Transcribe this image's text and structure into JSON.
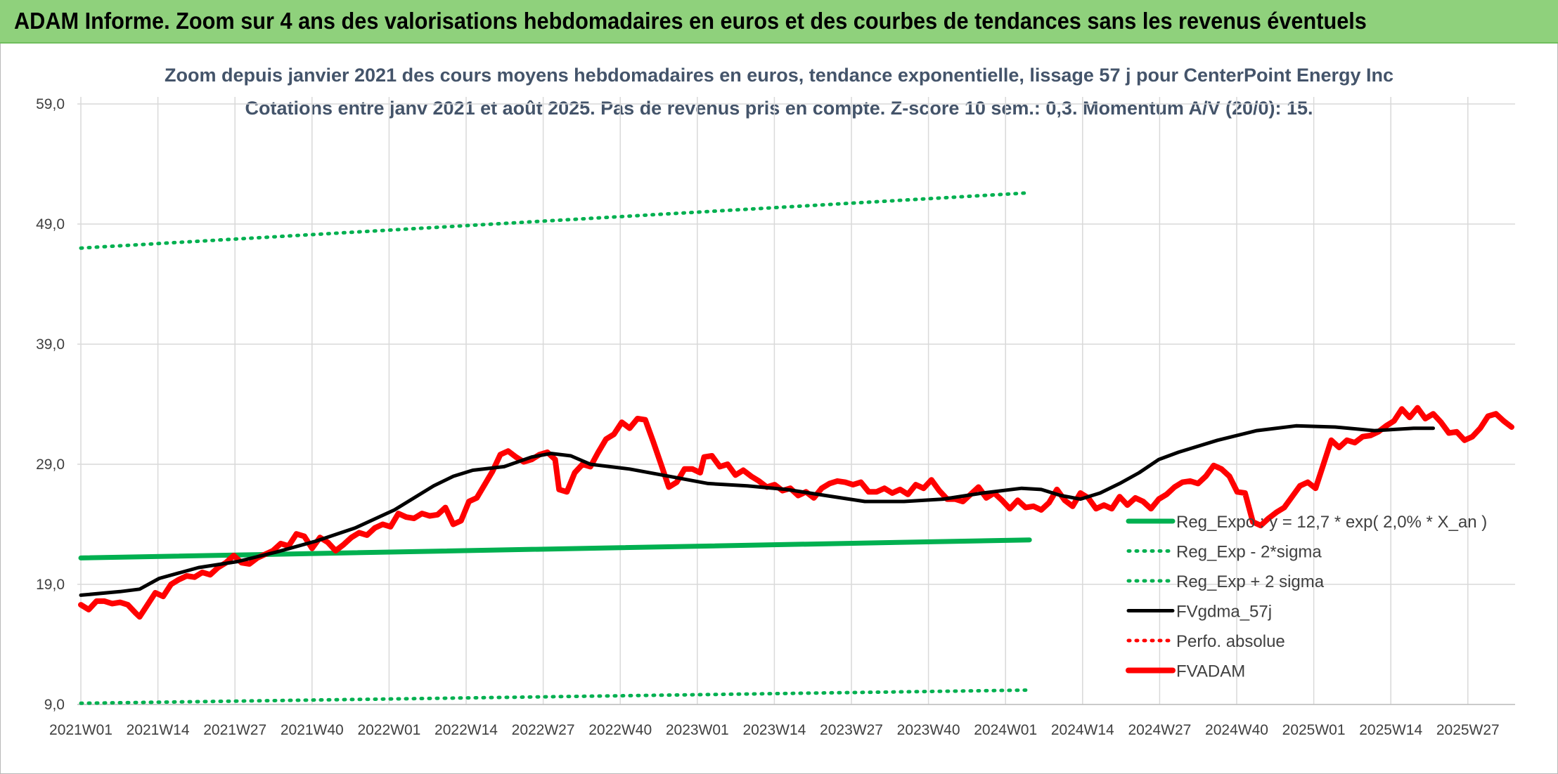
{
  "header": {
    "banner_title": "ADAM Informe. Zoom sur 4 ans des valorisations hebdomadaires en euros et des courbes de tendances sans les revenus éventuels",
    "banner_color": "#8fd17c"
  },
  "chart_data": {
    "type": "line",
    "title": "Zoom depuis janvier 2021 des cours moyens hebdomadaires en euros, tendance exponentielle, lissage 57 j pour CenterPoint Energy Inc",
    "subtitle": "Cotations entre janv 2021 et août 2025. Pas de revenus pris en compte. Z-score 10 sem.: 0,3. Momentum A/V (20/0): 15.",
    "xlabel": "",
    "ylabel": "",
    "ylim": [
      9,
      59
    ],
    "yticks": [
      "59,0",
      "49,0",
      "39,0",
      "29,0",
      "19,0",
      "9,0"
    ],
    "ytick_values": [
      59,
      49,
      39,
      29,
      19,
      9
    ],
    "xticks": [
      "2021W01",
      "2021W14",
      "2021W27",
      "2021W40",
      "2022W01",
      "2022W14",
      "2022W27",
      "2022W40",
      "2023W01",
      "2023W14",
      "2023W27",
      "2023W40",
      "2024W01",
      "2024W14",
      "2024W27",
      "2024W40",
      "2025W01",
      "2025W14",
      "2025W27"
    ],
    "week_count": 243,
    "grid": true,
    "legend_position": "right",
    "series": [
      {
        "name": "Reg_Expo : y = 12,7 * exp( 2,0% *  X_an )",
        "color": "#00b050",
        "style": "solid-thick",
        "points": [
          [
            0,
            21.2
          ],
          [
            242,
            22.7
          ]
        ]
      },
      {
        "name": "Reg_Exp - 2*sigma",
        "color": "#00b050",
        "style": "dotted",
        "points": [
          [
            0,
            9.1
          ],
          [
            242,
            10.2
          ]
        ]
      },
      {
        "name": "Reg_Exp + 2 sigma",
        "color": "#00b050",
        "style": "dotted",
        "points": [
          [
            0,
            47.0
          ],
          [
            242,
            51.6
          ]
        ]
      },
      {
        "name": "FVgdma_57j",
        "color": "#000000",
        "style": "solid",
        "points": [
          [
            0,
            18.1
          ],
          [
            10,
            18.4
          ],
          [
            15,
            18.6
          ],
          [
            20,
            19.5
          ],
          [
            30,
            20.4
          ],
          [
            40,
            20.9
          ],
          [
            50,
            21.7
          ],
          [
            60,
            22.6
          ],
          [
            70,
            23.7
          ],
          [
            80,
            25.2
          ],
          [
            85,
            26.2
          ],
          [
            90,
            27.2
          ],
          [
            95,
            28.0
          ],
          [
            100,
            28.5
          ],
          [
            108,
            28.8
          ],
          [
            115,
            29.6
          ],
          [
            120,
            29.9
          ],
          [
            125,
            29.7
          ],
          [
            130,
            29.0
          ],
          [
            140,
            28.6
          ],
          [
            150,
            28.0
          ],
          [
            160,
            27.4
          ],
          [
            170,
            27.2
          ],
          [
            180,
            26.9
          ],
          [
            190,
            26.4
          ],
          [
            200,
            25.9
          ],
          [
            210,
            25.9
          ],
          [
            220,
            26.1
          ],
          [
            230,
            26.6
          ],
          [
            240,
            27.0
          ],
          [
            245,
            26.9
          ],
          [
            250,
            26.4
          ],
          [
            255,
            26.1
          ],
          [
            260,
            26.6
          ],
          [
            265,
            27.4
          ],
          [
            270,
            28.3
          ],
          [
            275,
            29.4
          ],
          [
            280,
            30.0
          ],
          [
            290,
            31.0
          ],
          [
            300,
            31.8
          ],
          [
            310,
            32.2
          ],
          [
            320,
            32.1
          ],
          [
            330,
            31.8
          ],
          [
            340,
            32.0
          ],
          [
            345,
            32.0
          ]
        ]
      },
      {
        "name": "Perfo. absolue",
        "color": "#ff0000",
        "style": "dotted",
        "points": []
      },
      {
        "name": "FVADAM",
        "color": "#ff0000",
        "style": "solid-thick",
        "points": [
          [
            0,
            17.3
          ],
          [
            2,
            16.9
          ],
          [
            4,
            17.6
          ],
          [
            6,
            17.6
          ],
          [
            8,
            17.4
          ],
          [
            10,
            17.5
          ],
          [
            12,
            17.3
          ],
          [
            14,
            16.6
          ],
          [
            15,
            16.3
          ],
          [
            17,
            17.3
          ],
          [
            19,
            18.3
          ],
          [
            21,
            18.0
          ],
          [
            23,
            19.0
          ],
          [
            25,
            19.4
          ],
          [
            27,
            19.7
          ],
          [
            29,
            19.6
          ],
          [
            31,
            20.0
          ],
          [
            33,
            19.8
          ],
          [
            35,
            20.4
          ],
          [
            37,
            20.8
          ],
          [
            39,
            21.4
          ],
          [
            41,
            20.8
          ],
          [
            43,
            20.7
          ],
          [
            45,
            21.2
          ],
          [
            47,
            21.5
          ],
          [
            49,
            21.8
          ],
          [
            51,
            22.4
          ],
          [
            53,
            22.2
          ],
          [
            55,
            23.2
          ],
          [
            57,
            23.0
          ],
          [
            59,
            22.0
          ],
          [
            61,
            22.9
          ],
          [
            63,
            22.5
          ],
          [
            65,
            21.8
          ],
          [
            67,
            22.3
          ],
          [
            69,
            22.9
          ],
          [
            71,
            23.3
          ],
          [
            73,
            23.1
          ],
          [
            75,
            23.7
          ],
          [
            77,
            24.0
          ],
          [
            79,
            23.8
          ],
          [
            81,
            24.9
          ],
          [
            83,
            24.6
          ],
          [
            85,
            24.5
          ],
          [
            87,
            24.9
          ],
          [
            89,
            24.7
          ],
          [
            91,
            24.8
          ],
          [
            93,
            25.4
          ],
          [
            95,
            24.0
          ],
          [
            97,
            24.3
          ],
          [
            99,
            25.9
          ],
          [
            101,
            26.2
          ],
          [
            103,
            27.3
          ],
          [
            105,
            28.4
          ],
          [
            107,
            29.8
          ],
          [
            109,
            30.1
          ],
          [
            111,
            29.6
          ],
          [
            113,
            29.2
          ],
          [
            115,
            29.4
          ],
          [
            117,
            29.8
          ],
          [
            119,
            30.0
          ],
          [
            121,
            29.4
          ],
          [
            122,
            26.9
          ],
          [
            124,
            26.7
          ],
          [
            126,
            28.3
          ],
          [
            128,
            29.0
          ],
          [
            130,
            28.8
          ],
          [
            132,
            30.0
          ],
          [
            134,
            31.1
          ],
          [
            136,
            31.5
          ],
          [
            138,
            32.5
          ],
          [
            140,
            32.0
          ],
          [
            142,
            32.8
          ],
          [
            144,
            32.7
          ],
          [
            146,
            30.9
          ],
          [
            148,
            29.0
          ],
          [
            150,
            27.1
          ],
          [
            152,
            27.5
          ],
          [
            154,
            28.6
          ],
          [
            156,
            28.6
          ],
          [
            158,
            28.3
          ],
          [
            159,
            29.6
          ],
          [
            161,
            29.7
          ],
          [
            163,
            28.8
          ],
          [
            165,
            29.0
          ],
          [
            167,
            28.1
          ],
          [
            169,
            28.5
          ],
          [
            171,
            28.0
          ],
          [
            173,
            27.6
          ],
          [
            175,
            27.1
          ],
          [
            177,
            27.3
          ],
          [
            179,
            26.8
          ],
          [
            181,
            27.0
          ],
          [
            183,
            26.4
          ],
          [
            185,
            26.7
          ],
          [
            187,
            26.2
          ],
          [
            189,
            27.0
          ],
          [
            191,
            27.4
          ],
          [
            193,
            27.6
          ],
          [
            195,
            27.5
          ],
          [
            197,
            27.3
          ],
          [
            199,
            27.5
          ],
          [
            201,
            26.7
          ],
          [
            203,
            26.7
          ],
          [
            205,
            27.0
          ],
          [
            207,
            26.6
          ],
          [
            209,
            26.9
          ],
          [
            211,
            26.5
          ],
          [
            213,
            27.3
          ],
          [
            215,
            27.0
          ],
          [
            217,
            27.7
          ],
          [
            219,
            26.8
          ],
          [
            221,
            26.1
          ],
          [
            223,
            26.1
          ],
          [
            225,
            25.9
          ],
          [
            227,
            26.5
          ],
          [
            229,
            27.1
          ],
          [
            231,
            26.2
          ],
          [
            233,
            26.6
          ],
          [
            235,
            26.0
          ],
          [
            237,
            25.3
          ],
          [
            239,
            26.0
          ],
          [
            241,
            25.4
          ],
          [
            243,
            25.5
          ],
          [
            245,
            25.2
          ],
          [
            247,
            25.8
          ],
          [
            249,
            26.9
          ],
          [
            251,
            26.0
          ],
          [
            253,
            25.5
          ],
          [
            255,
            26.6
          ],
          [
            257,
            26.2
          ],
          [
            259,
            25.3
          ],
          [
            261,
            25.6
          ],
          [
            263,
            25.3
          ],
          [
            265,
            26.3
          ],
          [
            267,
            25.6
          ],
          [
            269,
            26.2
          ],
          [
            271,
            25.9
          ],
          [
            273,
            25.3
          ],
          [
            275,
            26.1
          ],
          [
            277,
            26.5
          ],
          [
            279,
            27.1
          ],
          [
            281,
            27.5
          ],
          [
            283,
            27.6
          ],
          [
            285,
            27.4
          ],
          [
            287,
            28.0
          ],
          [
            289,
            28.9
          ],
          [
            291,
            28.6
          ],
          [
            293,
            28.0
          ],
          [
            295,
            26.7
          ],
          [
            297,
            26.6
          ],
          [
            299,
            24.2
          ],
          [
            301,
            23.9
          ],
          [
            303,
            24.5
          ],
          [
            305,
            25.0
          ],
          [
            307,
            25.4
          ],
          [
            309,
            26.3
          ],
          [
            311,
            27.2
          ],
          [
            313,
            27.5
          ],
          [
            315,
            27.0
          ],
          [
            317,
            29.0
          ],
          [
            319,
            31.0
          ],
          [
            321,
            30.4
          ],
          [
            323,
            31.0
          ],
          [
            325,
            30.8
          ],
          [
            327,
            31.3
          ],
          [
            329,
            31.4
          ],
          [
            331,
            31.7
          ],
          [
            333,
            32.2
          ],
          [
            335,
            32.6
          ],
          [
            337,
            33.6
          ],
          [
            339,
            32.9
          ],
          [
            341,
            33.7
          ],
          [
            343,
            32.8
          ],
          [
            345,
            33.2
          ],
          [
            347,
            32.5
          ],
          [
            349,
            31.6
          ],
          [
            351,
            31.7
          ],
          [
            353,
            31.0
          ],
          [
            355,
            31.3
          ],
          [
            357,
            32.0
          ],
          [
            359,
            33.0
          ],
          [
            361,
            33.2
          ],
          [
            363,
            32.6
          ],
          [
            365,
            32.1
          ]
        ]
      }
    ]
  }
}
